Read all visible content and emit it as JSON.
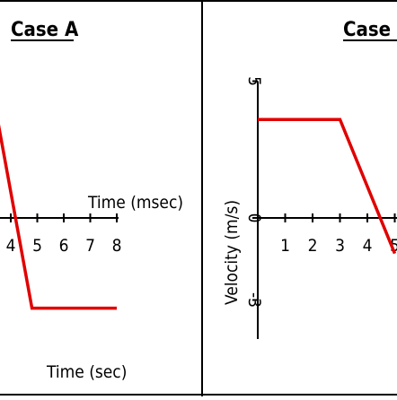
{
  "chart_data": [
    {
      "type": "line",
      "title": "Case A",
      "xlabel": "Time (msec)",
      "xlabel_secondary": "Time (sec)",
      "ylabel": "",
      "x_tick_labels": [
        "4",
        "5",
        "6",
        "7",
        "8"
      ],
      "y_tick_labels": [],
      "xlim": [
        3.5,
        8.2
      ],
      "ylim": [
        -4,
        4
      ],
      "series": [
        {
          "color": "#e00000",
          "x": [
            3.5,
            4.8,
            8.0
          ],
          "y": [
            3.6,
            -3.3,
            -3.3
          ]
        }
      ],
      "grid": false,
      "legend": "none"
    },
    {
      "type": "line",
      "title": "Case B",
      "xlabel": "",
      "ylabel": "Velocity (m/s)",
      "x_tick_labels": [
        "1",
        "2",
        "3",
        "4",
        "5"
      ],
      "y_tick_labels": [
        "5",
        "0",
        "-3"
      ],
      "xlim": [
        0,
        5.3
      ],
      "ylim": [
        -4,
        6
      ],
      "series": [
        {
          "color": "#e00000",
          "x": [
            0,
            3.0,
            5.0
          ],
          "y": [
            3.6,
            3.6,
            -1.3
          ]
        }
      ],
      "grid": false,
      "legend": "none"
    }
  ]
}
